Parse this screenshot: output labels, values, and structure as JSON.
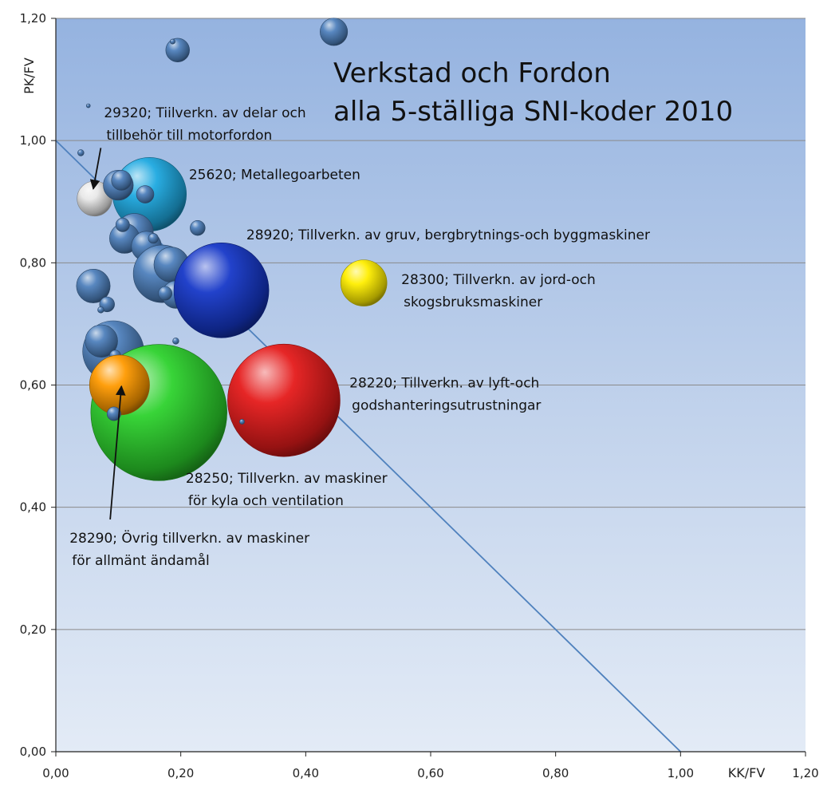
{
  "chart_data": {
    "type": "scatter",
    "title_lines": [
      "Verkstad och Fordon",
      "alla 5-ställiga SNI-koder 2010"
    ],
    "xlabel": "KK/FV",
    "ylabel": "PK/FV",
    "xlim": [
      0,
      1.2
    ],
    "ylim": [
      0,
      1.2
    ],
    "x_ticks": [
      "0,00",
      "0,20",
      "0,40",
      "0,60",
      "0,80",
      "1,00",
      "1,20"
    ],
    "y_ticks": [
      "0,00",
      "0,20",
      "0,40",
      "0,60",
      "0,80",
      "1,00",
      "1,20"
    ],
    "grid": "horizontal",
    "reference_line": {
      "x": [
        0,
        1.0
      ],
      "y": [
        1.0,
        0
      ]
    },
    "colors": {
      "default": "#4f81bd",
      "white": "#e8e8e8",
      "cyan": "#1ea9e0",
      "darkblue": "#1638c8",
      "yellow": "#ffee00",
      "red": "#e51b1b",
      "green": "#2dd22d",
      "orange": "#ff9a00"
    },
    "bubbles": [
      {
        "x": 0.445,
        "y": 1.178,
        "r": 0.022,
        "color": "default"
      },
      {
        "x": 0.195,
        "y": 1.148,
        "r": 0.019,
        "color": "default"
      },
      {
        "x": 0.187,
        "y": 1.162,
        "r": 0.004,
        "color": "default"
      },
      {
        "x": 0.052,
        "y": 1.057,
        "r": 0.003,
        "color": "default"
      },
      {
        "x": 0.04,
        "y": 0.98,
        "r": 0.005,
        "color": "default"
      },
      {
        "x": 0.062,
        "y": 0.905,
        "r": 0.028,
        "color": "white"
      },
      {
        "x": 0.15,
        "y": 0.912,
        "r": 0.059,
        "color": "cyan"
      },
      {
        "x": 0.1,
        "y": 0.927,
        "r": 0.024,
        "color": "default"
      },
      {
        "x": 0.105,
        "y": 0.935,
        "r": 0.016,
        "color": "default"
      },
      {
        "x": 0.143,
        "y": 0.912,
        "r": 0.014,
        "color": "default"
      },
      {
        "x": 0.227,
        "y": 0.857,
        "r": 0.012,
        "color": "default"
      },
      {
        "x": 0.126,
        "y": 0.85,
        "r": 0.03,
        "color": "default"
      },
      {
        "x": 0.11,
        "y": 0.84,
        "r": 0.024,
        "color": "default"
      },
      {
        "x": 0.107,
        "y": 0.862,
        "r": 0.011,
        "color": "default"
      },
      {
        "x": 0.145,
        "y": 0.827,
        "r": 0.024,
        "color": "default"
      },
      {
        "x": 0.156,
        "y": 0.84,
        "r": 0.008,
        "color": "default"
      },
      {
        "x": 0.17,
        "y": 0.782,
        "r": 0.046,
        "color": "default"
      },
      {
        "x": 0.185,
        "y": 0.797,
        "r": 0.028,
        "color": "default"
      },
      {
        "x": 0.192,
        "y": 0.748,
        "r": 0.022,
        "color": "default"
      },
      {
        "x": 0.175,
        "y": 0.75,
        "r": 0.011,
        "color": "default"
      },
      {
        "x": 0.265,
        "y": 0.755,
        "r": 0.076,
        "color": "darkblue"
      },
      {
        "x": 0.06,
        "y": 0.762,
        "r": 0.027,
        "color": "default"
      },
      {
        "x": 0.082,
        "y": 0.732,
        "r": 0.012,
        "color": "default"
      },
      {
        "x": 0.072,
        "y": 0.723,
        "r": 0.005,
        "color": "default"
      },
      {
        "x": 0.493,
        "y": 0.767,
        "r": 0.037,
        "color": "yellow"
      },
      {
        "x": 0.092,
        "y": 0.655,
        "r": 0.049,
        "color": "default"
      },
      {
        "x": 0.073,
        "y": 0.672,
        "r": 0.026,
        "color": "default"
      },
      {
        "x": 0.095,
        "y": 0.648,
        "r": 0.009,
        "color": "default"
      },
      {
        "x": 0.192,
        "y": 0.672,
        "r": 0.005,
        "color": "default"
      },
      {
        "x": 0.365,
        "y": 0.575,
        "r": 0.09,
        "color": "red"
      },
      {
        "x": 0.165,
        "y": 0.555,
        "r": 0.109,
        "color": "green"
      },
      {
        "x": 0.102,
        "y": 0.6,
        "r": 0.048,
        "color": "orange"
      },
      {
        "x": 0.093,
        "y": 0.553,
        "r": 0.011,
        "color": "default"
      },
      {
        "x": 0.298,
        "y": 0.54,
        "r": 0.004,
        "color": "default"
      }
    ],
    "annotations": [
      {
        "lines": [
          "29320; Tiilverkn. av delar och",
          "tillbehör till motorfordon"
        ],
        "x": 0.077,
        "y": 1.038,
        "arrow_to": [
          0.06,
          0.921
        ],
        "arrow_from": [
          0.072,
          0.988
        ]
      },
      {
        "lines": [
          "25620; Metallegoarbeten"
        ],
        "x": 0.213,
        "y": 0.937
      },
      {
        "lines": [
          "28920; Tillverkn. av gruv, bergbrytnings-och byggmaskiner"
        ],
        "x": 0.305,
        "y": 0.838
      },
      {
        "lines": [
          "28300; Tillverkn. av jord-och",
          "skogsbruksmaskiner"
        ],
        "x": 0.553,
        "y": 0.765
      },
      {
        "lines": [
          "28220; Tillverkn. av lyft-och",
          "godshanteringsutrustningar"
        ],
        "x": 0.47,
        "y": 0.596
      },
      {
        "lines": [
          "28250; Tillverkn. av maskiner",
          "för kyla och ventilation"
        ],
        "x": 0.208,
        "y": 0.44
      },
      {
        "lines": [
          "28290; Övrig tillverkn. av maskiner",
          "för allmänt ändamål"
        ],
        "x": 0.022,
        "y": 0.342,
        "arrow_to": [
          0.105,
          0.598
        ],
        "arrow_from": [
          0.087,
          0.38
        ]
      }
    ]
  }
}
